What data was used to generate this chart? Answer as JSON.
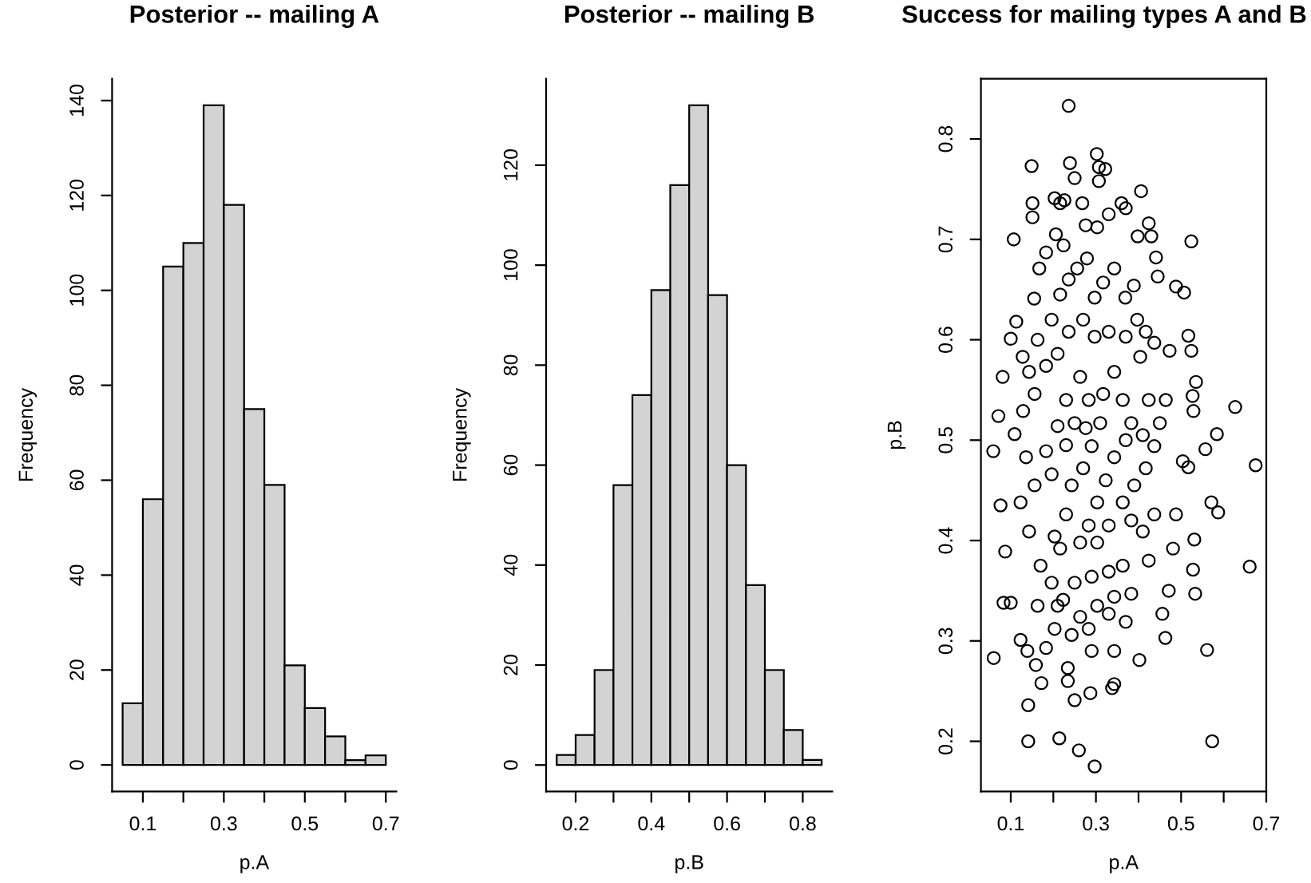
{
  "chart_data": [
    {
      "type": "histogram",
      "title": "Posterior -- mailing A",
      "xlabel": "p.A",
      "ylabel": "Frequency",
      "bins": [
        0.05,
        0.1,
        0.15,
        0.2,
        0.25,
        0.3,
        0.35,
        0.4,
        0.45,
        0.5,
        0.55,
        0.6,
        0.65,
        0.7
      ],
      "values": [
        13,
        56,
        105,
        110,
        139,
        118,
        75,
        59,
        21,
        12,
        6,
        1,
        2
      ],
      "color": "#d3d3d3",
      "xlim": [
        0.024,
        0.726
      ],
      "ylim": [
        -5.6,
        144.6
      ],
      "xticks": [
        0.1,
        {
          "value": 0.2,
          "label": null
        },
        0.3,
        {
          "value": 0.4,
          "label": null
        },
        0.5,
        {
          "value": 0.6,
          "label": null
        },
        0.7
      ],
      "yticks": [
        0,
        20,
        40,
        60,
        80,
        100,
        120,
        140
      ]
    },
    {
      "type": "histogram",
      "title": "Posterior -- mailing B",
      "xlabel": "p.B",
      "ylabel": "Frequency",
      "bins": [
        0.15,
        0.2,
        0.25,
        0.3,
        0.35,
        0.4,
        0.45,
        0.5,
        0.55,
        0.6,
        0.65,
        0.7,
        0.75,
        0.8,
        0.85
      ],
      "values": [
        2,
        6,
        19,
        56,
        74,
        95,
        116,
        132,
        94,
        60,
        36,
        19,
        7,
        1
      ],
      "color": "#d3d3d3",
      "xlim": [
        0.122,
        0.878
      ],
      "ylim": [
        -5.3,
        137.3
      ],
      "xticks": [
        0.2,
        {
          "value": 0.3,
          "label": null
        },
        0.4,
        {
          "value": 0.5,
          "label": null
        },
        0.6,
        {
          "value": 0.7,
          "label": null
        },
        0.8
      ],
      "yticks": [
        0,
        20,
        40,
        60,
        80,
        100,
        120
      ]
    },
    {
      "type": "scatter",
      "title": "Success for mailing types A and B",
      "xlabel": "p.A",
      "ylabel": "p.B",
      "color": "#000000",
      "marker": "circle",
      "xlim": [
        0.03,
        0.7
      ],
      "ylim": [
        0.15,
        0.86
      ],
      "xticks": [
        0.1,
        {
          "value": 0.2,
          "label": null
        },
        0.3,
        {
          "value": 0.4,
          "label": null
        },
        0.5,
        {
          "value": 0.6,
          "label": null
        },
        0.7
      ],
      "yticks": [
        0.2,
        0.3,
        0.4,
        0.5,
        0.6,
        0.7,
        0.8
      ],
      "x": [
        0.236,
        0.302,
        0.239,
        0.149,
        0.307,
        0.322,
        0.307,
        0.25,
        0.406,
        0.203,
        0.226,
        0.216,
        0.151,
        0.151,
        0.268,
        0.36,
        0.37,
        0.33,
        0.107,
        0.206,
        0.524,
        0.424,
        0.43,
        0.303,
        0.276,
        0.224,
        0.398,
        0.488,
        0.507,
        0.183,
        0.167,
        0.445,
        0.441,
        0.155,
        0.113,
        0.1,
        0.081,
        0.071,
        0.059,
        0.076,
        0.087,
        0.083,
        0.1,
        0.06,
        0.141,
        0.141,
        0.214,
        0.297,
        0.26,
        0.25,
        0.287,
        0.338,
        0.343,
        0.234,
        0.234,
        0.172,
        0.159,
        0.139,
        0.123,
        0.343,
        0.402,
        0.573,
        0.561,
        0.533,
        0.528,
        0.531,
        0.661,
        0.675,
        0.571,
        0.587,
        0.584,
        0.627,
        0.557,
        0.535,
        0.527,
        0.529,
        0.517,
        0.524,
        0.473,
        0.504,
        0.517,
        0.488,
        0.481,
        0.471,
        0.456,
        0.463,
        0.128,
        0.143,
        0.163,
        0.196,
        0.216,
        0.236,
        0.256,
        0.279,
        0.297,
        0.317,
        0.343,
        0.369,
        0.389,
        0.397,
        0.417,
        0.437,
        0.404,
        0.37,
        0.33,
        0.297,
        0.27,
        0.236,
        0.21,
        0.183,
        0.156,
        0.129,
        0.109,
        0.136,
        0.156,
        0.123,
        0.143,
        0.17,
        0.196,
        0.216,
        0.203,
        0.23,
        0.243,
        0.27,
        0.29,
        0.31,
        0.283,
        0.263,
        0.23,
        0.21,
        0.183,
        0.196,
        0.23,
        0.25,
        0.276,
        0.317,
        0.343,
        0.363,
        0.383,
        0.37,
        0.343,
        0.323,
        0.303,
        0.283,
        0.263,
        0.303,
        0.33,
        0.363,
        0.39,
        0.417,
        0.437,
        0.45,
        0.464,
        0.424,
        0.41,
        0.383,
        0.41,
        0.437,
        0.424,
        0.363,
        0.33,
        0.29,
        0.25,
        0.223,
        0.263,
        0.303,
        0.343,
        0.383,
        0.37,
        0.33,
        0.283,
        0.243,
        0.203,
        0.163,
        0.183,
        0.29,
        0.21
      ],
      "values": [
        0.833,
        0.785,
        0.776,
        0.773,
        0.772,
        0.77,
        0.758,
        0.761,
        0.748,
        0.741,
        0.739,
        0.736,
        0.736,
        0.722,
        0.736,
        0.736,
        0.731,
        0.725,
        0.7,
        0.705,
        0.698,
        0.716,
        0.703,
        0.712,
        0.714,
        0.694,
        0.703,
        0.653,
        0.647,
        0.687,
        0.671,
        0.663,
        0.682,
        0.641,
        0.618,
        0.601,
        0.563,
        0.524,
        0.489,
        0.435,
        0.389,
        0.338,
        0.338,
        0.283,
        0.236,
        0.2,
        0.203,
        0.175,
        0.191,
        0.241,
        0.248,
        0.253,
        0.257,
        0.26,
        0.273,
        0.258,
        0.276,
        0.29,
        0.301,
        0.29,
        0.281,
        0.2,
        0.291,
        0.347,
        0.371,
        0.401,
        0.374,
        0.475,
        0.438,
        0.428,
        0.506,
        0.533,
        0.491,
        0.558,
        0.544,
        0.529,
        0.604,
        0.589,
        0.589,
        0.479,
        0.473,
        0.426,
        0.392,
        0.35,
        0.327,
        0.303,
        0.583,
        0.568,
        0.6,
        0.62,
        0.645,
        0.66,
        0.671,
        0.681,
        0.642,
        0.657,
        0.671,
        0.642,
        0.654,
        0.62,
        0.608,
        0.597,
        0.583,
        0.603,
        0.608,
        0.603,
        0.62,
        0.608,
        0.586,
        0.574,
        0.546,
        0.529,
        0.506,
        0.483,
        0.455,
        0.438,
        0.409,
        0.375,
        0.358,
        0.392,
        0.404,
        0.426,
        0.455,
        0.472,
        0.494,
        0.517,
        0.54,
        0.563,
        0.54,
        0.514,
        0.489,
        0.466,
        0.495,
        0.517,
        0.512,
        0.546,
        0.568,
        0.54,
        0.517,
        0.5,
        0.483,
        0.46,
        0.438,
        0.415,
        0.398,
        0.398,
        0.415,
        0.438,
        0.455,
        0.472,
        0.494,
        0.517,
        0.54,
        0.54,
        0.505,
        0.42,
        0.409,
        0.426,
        0.38,
        0.375,
        0.369,
        0.364,
        0.358,
        0.341,
        0.324,
        0.335,
        0.344,
        0.347,
        0.319,
        0.327,
        0.312,
        0.306,
        0.312,
        0.335,
        0.293,
        0.29,
        0.335
      ]
    }
  ]
}
